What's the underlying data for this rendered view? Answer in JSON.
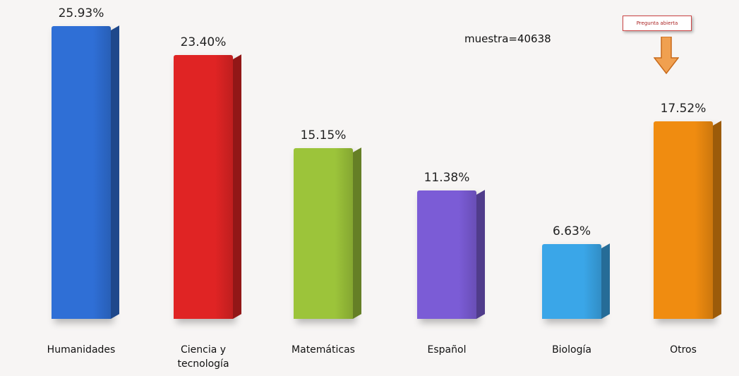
{
  "chart_data": {
    "type": "bar",
    "categories": [
      "Humanidades",
      "Ciencia y tecnología",
      "Matemáticas",
      "Español",
      "Biología",
      "Otros"
    ],
    "values": [
      25.93,
      23.4,
      15.15,
      11.38,
      6.63,
      17.52
    ],
    "value_labels": [
      "25.93%",
      "23.40%",
      "15.15%",
      "11.38%",
      "6.63%",
      "17.52%"
    ],
    "colors": [
      "#2f6fd6",
      "#e02424",
      "#9cc43a",
      "#7b5cd6",
      "#3aa6e8",
      "#f08c10"
    ],
    "annotations": [
      "muestra=40638",
      "Pregunta abierta"
    ]
  }
}
